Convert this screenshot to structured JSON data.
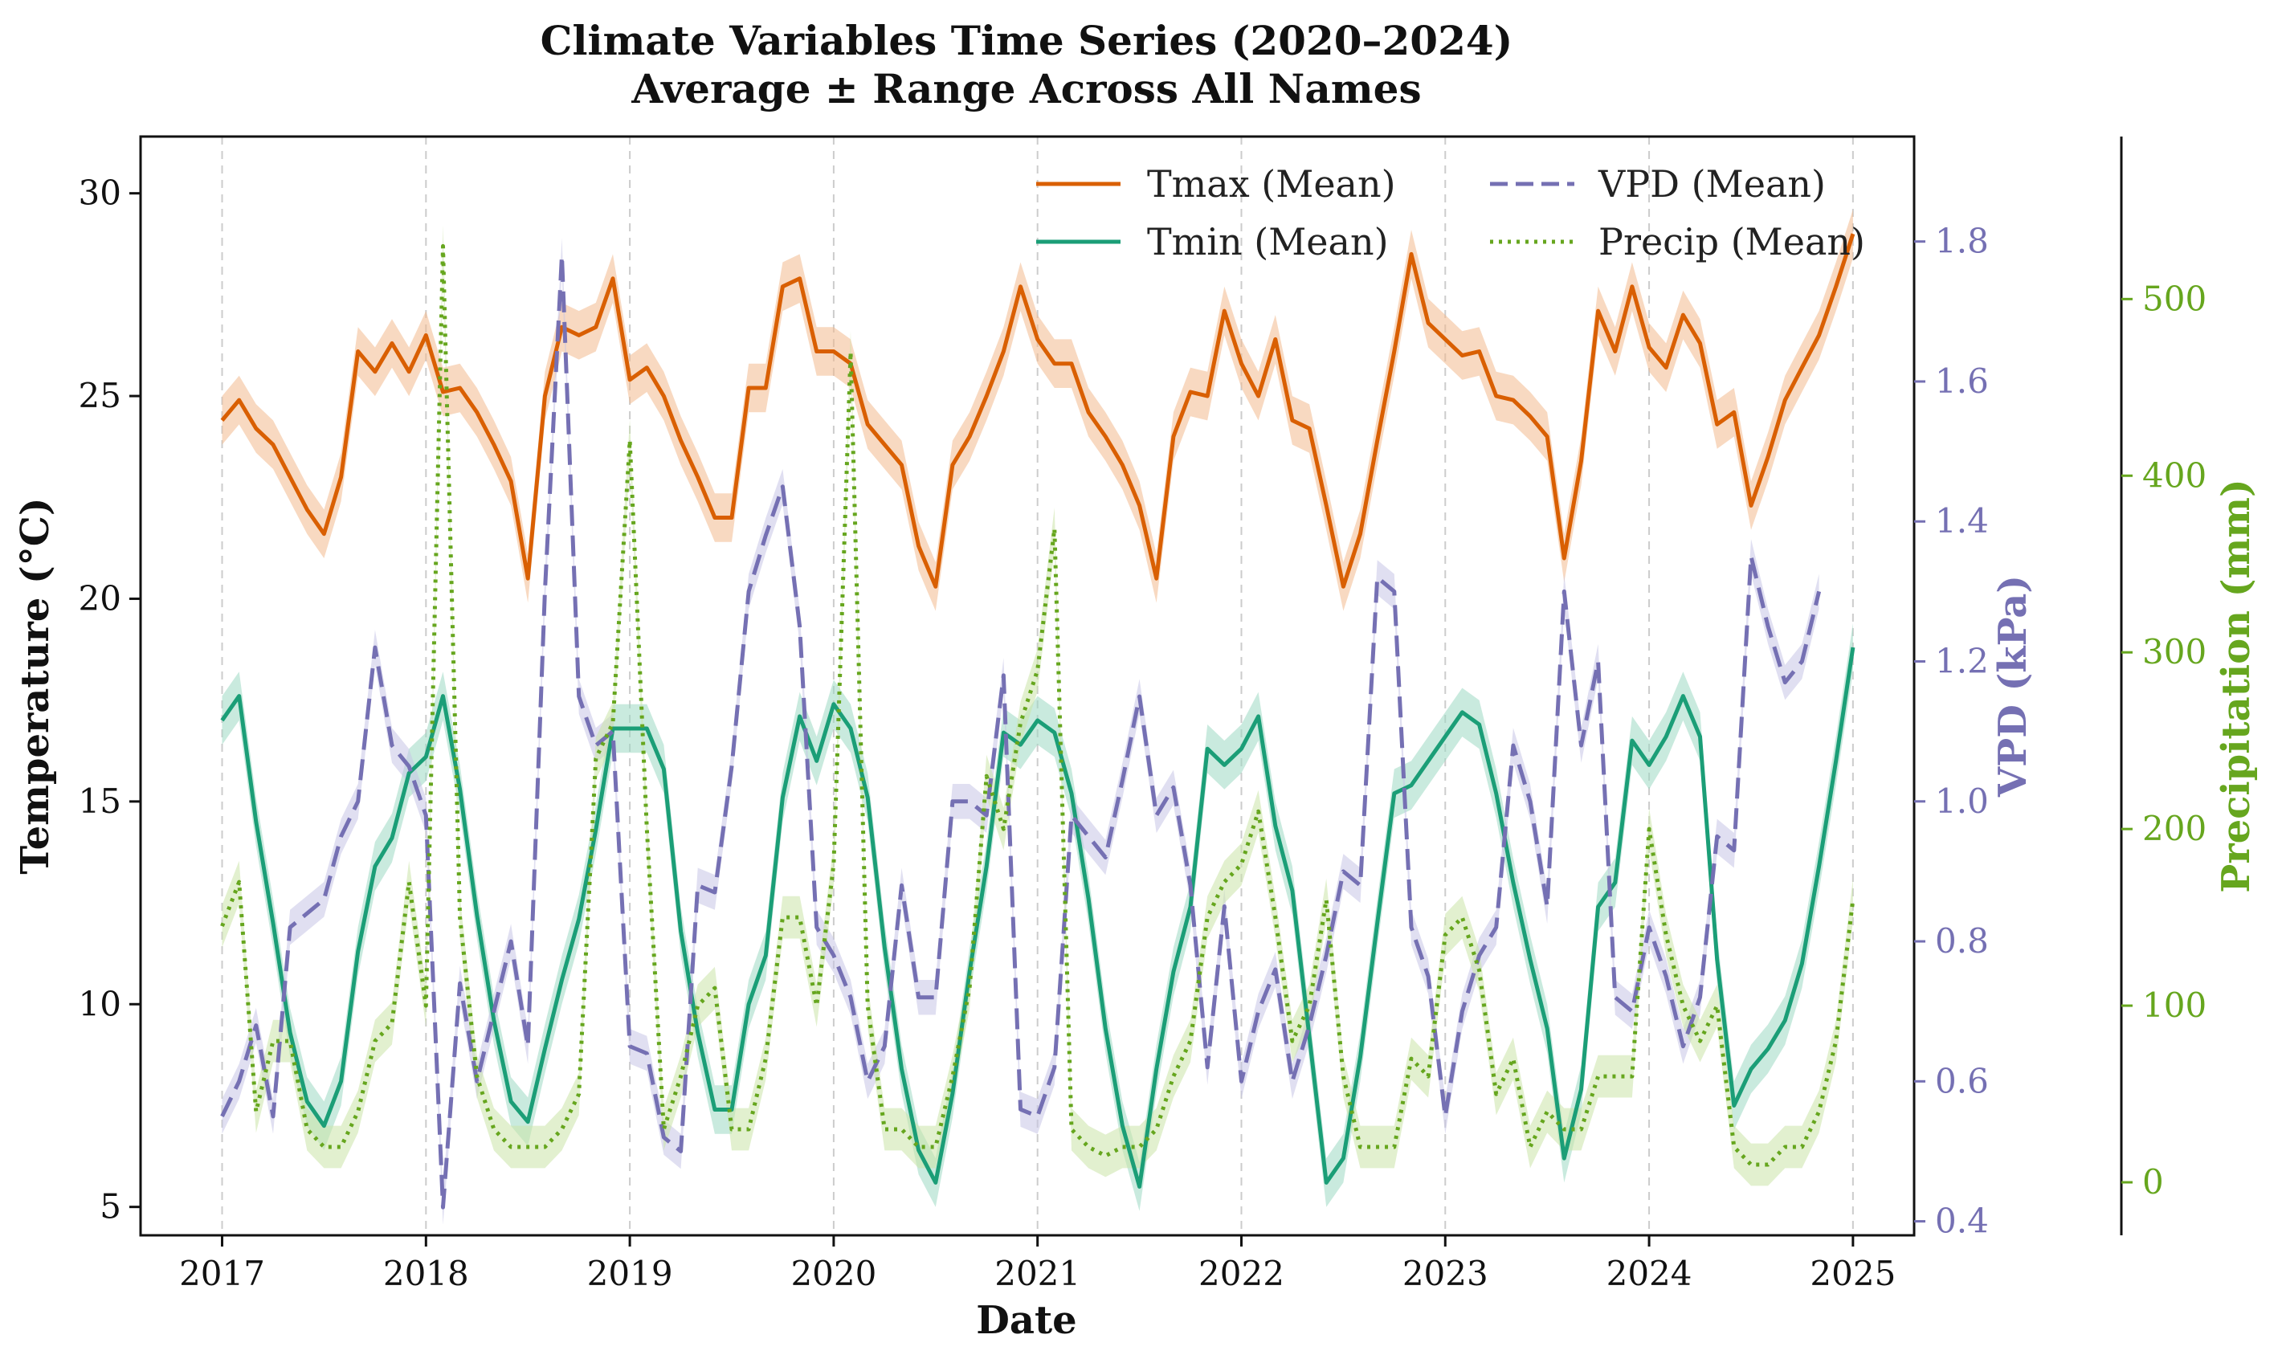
{
  "chart_data": {
    "type": "line",
    "title_line1": "Climate Variables Time Series (2020–2024)",
    "title_line2": "Average ± Range Across All Names",
    "xlabel": "Date",
    "ylabel_left": "Temperature (°C)",
    "ylabel_right1": "VPD (kPa)",
    "ylabel_right2": "Precipitation (mm)",
    "x_ticks": [
      "2017",
      "2018",
      "2019",
      "2020",
      "2021",
      "2022",
      "2023",
      "2024",
      "2025"
    ],
    "x_range": [
      2016.6,
      2025.3
    ],
    "temp_ylim": [
      4.3,
      31.4
    ],
    "temp_ticks": [
      "5",
      "10",
      "15",
      "20",
      "25",
      "30"
    ],
    "vpd_ylim": [
      0.38,
      1.95
    ],
    "vpd_ticks": [
      "0.4",
      "0.6",
      "0.8",
      "1.0",
      "1.2",
      "1.4",
      "1.6",
      "1.8"
    ],
    "precip_ylim": [
      -30,
      592
    ],
    "precip_ticks": [
      "0",
      "100",
      "200",
      "300",
      "400",
      "500"
    ],
    "grid": "vertical dashed at year ticks",
    "legend_position": "top-right",
    "colors": {
      "tmax": "#d95f02",
      "tmin": "#1b9e77",
      "vpd": "#7570b3",
      "precip": "#66a61e",
      "tmax_band": "#f2b98e",
      "tmin_band": "#9dd9c3",
      "vpd_band": "#c7c4e6",
      "precip_band": "#cbe3a8",
      "grid": "#cccccc",
      "text": "#111111"
    },
    "series": [
      {
        "name": "Tmax (Mean)",
        "key": "tmax",
        "axis": "temp",
        "style": "solid",
        "band": 0.6,
        "values": [
          24.4,
          24.9,
          24.2,
          23.8,
          23.0,
          22.2,
          21.6,
          23.0,
          26.1,
          25.6,
          26.3,
          25.6,
          26.5,
          25.1,
          25.2,
          24.6,
          23.8,
          22.9,
          20.5,
          25.0,
          26.7,
          26.5,
          26.7,
          27.9,
          25.4,
          25.7,
          25.0,
          23.9,
          23.0,
          22.0,
          22.0,
          25.2,
          25.2,
          27.7,
          27.9,
          26.1,
          26.1,
          25.8,
          24.3,
          23.8,
          23.3,
          21.3,
          20.3,
          23.3,
          24.0,
          25.0,
          26.1,
          27.7,
          26.4,
          25.8,
          25.8,
          24.6,
          24.0,
          23.3,
          22.3,
          20.5,
          24.0,
          25.1,
          25.0,
          27.1,
          25.8,
          25.0,
          26.4,
          24.4,
          24.2,
          22.3,
          20.3,
          21.6,
          23.9,
          26.1,
          28.5,
          26.8,
          26.4,
          26.0,
          26.1,
          25.0,
          24.9,
          24.5,
          24.0,
          21.0,
          23.4,
          27.1,
          26.1,
          27.7,
          26.2,
          25.7,
          27.0,
          26.3,
          24.3,
          24.6,
          22.3,
          23.5,
          24.9,
          25.7,
          26.5,
          27.7,
          29.0
        ]
      },
      {
        "name": "Tmin (Mean)",
        "key": "tmin",
        "axis": "temp",
        "style": "solid",
        "band": 0.6,
        "values": [
          17.0,
          17.6,
          14.5,
          12.0,
          9.3,
          7.6,
          7.0,
          8.1,
          11.3,
          13.4,
          14.1,
          15.7,
          16.1,
          17.6,
          15.3,
          12.2,
          9.6,
          7.6,
          7.1,
          8.9,
          10.6,
          12.1,
          14.3,
          16.8,
          16.8,
          16.8,
          15.8,
          11.8,
          9.3,
          7.4,
          7.4,
          10.0,
          11.2,
          15.1,
          17.1,
          16.0,
          17.4,
          16.8,
          15.1,
          11.4,
          8.4,
          6.4,
          5.6,
          7.8,
          10.8,
          13.4,
          16.7,
          16.4,
          17.0,
          16.7,
          15.2,
          12.6,
          9.4,
          7.0,
          5.5,
          8.4,
          10.8,
          12.4,
          16.3,
          15.9,
          16.3,
          17.1,
          14.4,
          12.8,
          9.2,
          5.6,
          6.2,
          8.7,
          12.0,
          15.2,
          15.4,
          16.0,
          16.6,
          17.2,
          16.9,
          15.2,
          13.0,
          11.1,
          9.4,
          6.2,
          7.9,
          12.4,
          13.0,
          16.5,
          15.9,
          16.6,
          17.6,
          16.6,
          11.1,
          7.5,
          8.4,
          8.9,
          9.6,
          11.0,
          13.4,
          16.0,
          18.8
        ]
      },
      {
        "name": "VPD (Mean)",
        "key": "vpd",
        "axis": "vpd",
        "style": "dashed",
        "band": 0.025,
        "values": [
          0.55,
          0.6,
          0.68,
          0.55,
          0.82,
          0.84,
          0.86,
          0.95,
          1.0,
          1.22,
          1.08,
          1.05,
          0.98,
          0.42,
          0.74,
          0.6,
          0.7,
          0.8,
          0.65,
          1.3,
          1.78,
          1.15,
          1.08,
          1.1,
          0.65,
          0.64,
          0.52,
          0.5,
          0.88,
          0.87,
          1.05,
          1.3,
          1.38,
          1.45,
          1.25,
          0.82,
          0.78,
          0.72,
          0.6,
          0.65,
          0.88,
          0.72,
          0.72,
          1.0,
          1.0,
          0.98,
          1.18,
          0.56,
          0.55,
          0.62,
          0.98,
          0.95,
          0.92,
          1.03,
          1.15,
          0.98,
          1.02,
          0.88,
          0.62,
          0.85,
          0.6,
          0.7,
          0.76,
          0.6,
          0.68,
          0.78,
          0.9,
          0.88,
          1.32,
          1.3,
          0.82,
          0.75,
          0.55,
          0.7,
          0.78,
          0.82,
          1.08,
          1.0,
          0.85,
          1.3,
          1.08,
          1.2,
          0.72,
          0.7,
          0.82,
          0.75,
          0.65,
          0.72,
          0.95,
          0.93,
          1.35,
          1.25,
          1.17,
          1.2,
          1.3
        ]
      },
      {
        "name": "Precip (Mean)",
        "key": "precip",
        "axis": "precip",
        "style": "dotted",
        "band": 12,
        "values": [
          145,
          170,
          40,
          80,
          80,
          30,
          20,
          20,
          40,
          80,
          90,
          170,
          100,
          530,
          150,
          60,
          30,
          20,
          20,
          20,
          30,
          50,
          240,
          260,
          420,
          200,
          30,
          60,
          100,
          110,
          30,
          30,
          70,
          150,
          150,
          100,
          180,
          470,
          100,
          30,
          30,
          20,
          20,
          60,
          110,
          230,
          200,
          260,
          290,
          370,
          30,
          20,
          15,
          20,
          20,
          30,
          60,
          80,
          150,
          170,
          180,
          210,
          150,
          80,
          100,
          160,
          60,
          20,
          20,
          20,
          70,
          60,
          140,
          150,
          120,
          50,
          70,
          20,
          40,
          30,
          30,
          60,
          60,
          60,
          200,
          140,
          100,
          80,
          100,
          20,
          10,
          10,
          20,
          20,
          40,
          80,
          160
        ]
      }
    ]
  }
}
